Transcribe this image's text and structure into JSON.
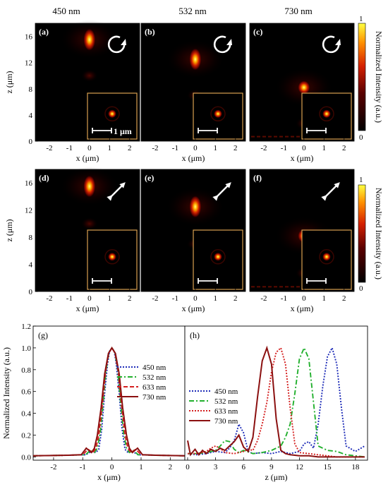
{
  "column_titles": [
    "450 nm",
    "532 nm",
    "730 nm"
  ],
  "colorbar": {
    "label": "Normalized Intensity (a.u.)",
    "max_label": "1",
    "min_label": "0"
  },
  "heatmaps": {
    "xlabel": "x (μm)",
    "zlabel": "z (μm)",
    "x_ticks": [
      "-2",
      "-1",
      "0",
      "1",
      "2"
    ],
    "z_ticks": [
      "0",
      "4",
      "8",
      "12",
      "16"
    ],
    "scale_bar_label": "1 μm",
    "rows": [
      {
        "polarization": "circular",
        "icon": "circular-arrow-icon",
        "panels": [
          {
            "label": "(a)",
            "wavelength": "450 nm",
            "focus_z": 15.5
          },
          {
            "label": "(b)",
            "wavelength": "532 nm",
            "focus_z": 12.5
          },
          {
            "label": "(c)",
            "wavelength": "730 nm",
            "focus_z": 8.2
          }
        ]
      },
      {
        "polarization": "linear",
        "icon": "double-arrow-icon",
        "panels": [
          {
            "label": "(d)",
            "wavelength": "450 nm",
            "focus_z": 15.5
          },
          {
            "label": "(e)",
            "wavelength": "532 nm",
            "focus_z": 12.5
          },
          {
            "label": "(f)",
            "wavelength": "730 nm",
            "focus_z": 8.2
          }
        ]
      }
    ]
  },
  "chart_data": [
    {
      "type": "line",
      "panel_label": "(g)",
      "xlabel": "x (μm)",
      "ylabel": "Normalized Intensity (a.u.)",
      "xlim": [
        -2.7,
        2.5
      ],
      "ylim": [
        -0.03,
        1.2
      ],
      "x_ticks": [
        "-2",
        "-1",
        "0",
        "1",
        "2"
      ],
      "y_ticks": [
        "0.0",
        "0.2",
        "0.4",
        "0.6",
        "0.8",
        "1.0",
        "1.2"
      ],
      "legend_position": "top-right",
      "series": [
        {
          "name": "450 nm",
          "color": "#1f2db8",
          "dash": "dot",
          "x": [
            -2.7,
            -1.5,
            -0.9,
            -0.7,
            -0.55,
            -0.45,
            -0.35,
            -0.25,
            -0.15,
            -0.08,
            0,
            0.08,
            0.15,
            0.25,
            0.35,
            0.45,
            0.55,
            0.7,
            0.9,
            1.5,
            2.5
          ],
          "y": [
            0.01,
            0.015,
            0.02,
            0.05,
            0.04,
            0.07,
            0.25,
            0.58,
            0.85,
            0.97,
            1.0,
            0.97,
            0.85,
            0.58,
            0.25,
            0.07,
            0.04,
            0.05,
            0.02,
            0.015,
            0.01
          ]
        },
        {
          "name": "532 nm",
          "color": "#22b02e",
          "dash": "dashdot",
          "x": [
            -2.7,
            -1.5,
            -0.9,
            -0.75,
            -0.6,
            -0.5,
            -0.4,
            -0.3,
            -0.2,
            -0.1,
            0,
            0.1,
            0.2,
            0.3,
            0.4,
            0.5,
            0.6,
            0.75,
            0.9,
            1.5,
            2.5
          ],
          "y": [
            0.01,
            0.015,
            0.02,
            0.06,
            0.04,
            0.08,
            0.22,
            0.5,
            0.8,
            0.96,
            1.0,
            0.96,
            0.8,
            0.5,
            0.22,
            0.08,
            0.04,
            0.06,
            0.02,
            0.015,
            0.01
          ]
        },
        {
          "name": "633 nm",
          "color": "#d42020",
          "dash": "dash",
          "x": [
            -2.7,
            -1.5,
            -1.0,
            -0.82,
            -0.65,
            -0.55,
            -0.45,
            -0.33,
            -0.22,
            -0.11,
            0,
            0.11,
            0.22,
            0.33,
            0.45,
            0.55,
            0.65,
            0.82,
            1.0,
            1.5,
            2.5
          ],
          "y": [
            0.01,
            0.015,
            0.02,
            0.07,
            0.04,
            0.08,
            0.2,
            0.48,
            0.78,
            0.95,
            1.0,
            0.95,
            0.78,
            0.48,
            0.2,
            0.08,
            0.04,
            0.07,
            0.02,
            0.015,
            0.01
          ]
        },
        {
          "name": "730 nm",
          "color": "#8b1010",
          "dash": "solid",
          "x": [
            -2.7,
            -1.5,
            -1.05,
            -0.88,
            -0.7,
            -0.6,
            -0.5,
            -0.37,
            -0.25,
            -0.12,
            0,
            0.12,
            0.25,
            0.37,
            0.5,
            0.6,
            0.7,
            0.88,
            1.05,
            1.5,
            2.5
          ],
          "y": [
            0.01,
            0.015,
            0.02,
            0.08,
            0.04,
            0.08,
            0.2,
            0.45,
            0.76,
            0.95,
            1.0,
            0.95,
            0.76,
            0.45,
            0.2,
            0.08,
            0.04,
            0.08,
            0.02,
            0.015,
            0.01
          ]
        }
      ]
    },
    {
      "type": "line",
      "panel_label": "(h)",
      "xlabel": "z (μm)",
      "ylabel": "",
      "xlim": [
        -0.3,
        19.3
      ],
      "ylim": [
        -0.03,
        1.2
      ],
      "x_ticks": [
        "0",
        "3",
        "6",
        "9",
        "12",
        "15",
        "18"
      ],
      "legend_position": "left",
      "series": [
        {
          "name": "450 nm",
          "color": "#1f2db8",
          "dash": "dot",
          "x": [
            0,
            1,
            2,
            3,
            4,
            4.5,
            5,
            5.5,
            6,
            6.5,
            7,
            8,
            9,
            10,
            11,
            12,
            12.5,
            13,
            13.5,
            14,
            14.5,
            15,
            15.5,
            16,
            16.5,
            17,
            18,
            19
          ],
          "y": [
            0.03,
            0.02,
            0.03,
            0.05,
            0.04,
            0.08,
            0.15,
            0.3,
            0.22,
            0.05,
            0.03,
            0.04,
            0.03,
            0.05,
            0.03,
            0.05,
            0.12,
            0.14,
            0.08,
            0.3,
            0.65,
            0.92,
            1.0,
            0.85,
            0.45,
            0.1,
            0.05,
            0.1
          ]
        },
        {
          "name": "532 nm",
          "color": "#22b02e",
          "dash": "dashdot",
          "x": [
            0,
            1,
            2,
            3,
            3.5,
            4,
            4.5,
            5,
            5.5,
            6,
            7,
            8,
            9,
            10,
            10.5,
            11,
            11.5,
            12,
            12.5,
            13,
            13.5,
            14,
            15,
            16,
            17,
            18,
            19
          ],
          "y": [
            0.03,
            0.03,
            0.04,
            0.06,
            0.1,
            0.15,
            0.14,
            0.07,
            0.04,
            0.06,
            0.03,
            0.04,
            0.06,
            0.1,
            0.18,
            0.3,
            0.58,
            0.9,
            1.0,
            0.9,
            0.5,
            0.1,
            0.06,
            0.05,
            0.02,
            0.01,
            0.0
          ]
        },
        {
          "name": "633 nm",
          "color": "#d42020",
          "dash": "dot",
          "x": [
            0,
            1,
            2,
            2.5,
            3,
            3.5,
            4,
            5,
            6,
            6.5,
            7,
            7.5,
            8,
            8.5,
            9,
            9.5,
            10,
            10.5,
            11,
            11.5,
            12,
            13,
            14,
            15,
            16,
            17,
            18,
            19
          ],
          "y": [
            0.03,
            0.03,
            0.05,
            0.08,
            0.1,
            0.08,
            0.04,
            0.03,
            0.05,
            0.07,
            0.06,
            0.15,
            0.3,
            0.5,
            0.78,
            0.96,
            1.0,
            0.85,
            0.45,
            0.12,
            0.04,
            0.03,
            0.02,
            0.01,
            0.0,
            0.0,
            0.0,
            0.0
          ]
        },
        {
          "name": "730 nm",
          "color": "#8b1010",
          "dash": "solid",
          "x": [
            0,
            0.3,
            0.8,
            1.2,
            1.6,
            2,
            2.5,
            3,
            3.5,
            4,
            4.5,
            5,
            5.5,
            6,
            6.5,
            7,
            7.5,
            8,
            8.5,
            9,
            9.5,
            10,
            10.5,
            11,
            12,
            13,
            14,
            15,
            16,
            17,
            18,
            19
          ],
          "y": [
            0.15,
            0.02,
            0.07,
            0.02,
            0.06,
            0.03,
            0.07,
            0.05,
            0.08,
            0.06,
            0.1,
            0.14,
            0.2,
            0.09,
            0.05,
            0.18,
            0.55,
            0.88,
            1.0,
            0.85,
            0.35,
            0.06,
            0.03,
            0.02,
            0.01,
            0.01,
            0.0,
            0.0,
            0.0,
            0.0,
            0.0,
            0.0
          ]
        }
      ]
    }
  ]
}
